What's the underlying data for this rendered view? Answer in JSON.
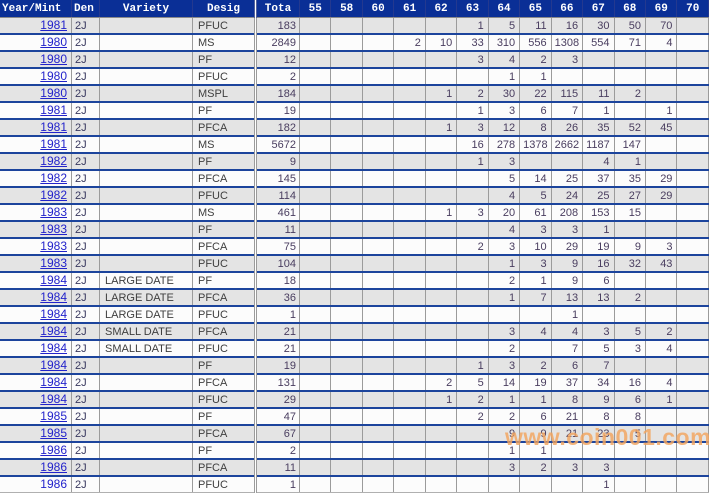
{
  "colors": {
    "header_bg": "#0a2f96",
    "header_text": "#ffffff",
    "row_separator_blue": "#1c449c",
    "row_odd_bg": "#e4e4e4",
    "row_even_bg": "#fcfcfc",
    "grid_line_gray": "#9b9b9b",
    "year_link_blue": "#2323cb",
    "number_text": "#493d5f",
    "watermark_orange": "#f3a55f"
  },
  "watermark": {
    "text": "www.coin001.com"
  },
  "table": {
    "columns": [
      "Year/Mint",
      "Den",
      "Variety",
      "Desig",
      "Tota",
      "55",
      "58",
      "60",
      "61",
      "62",
      "63",
      "64",
      "65",
      "66",
      "67",
      "68",
      "69",
      "70"
    ],
    "grade_columns": [
      "55",
      "58",
      "60",
      "61",
      "62",
      "63",
      "64",
      "65",
      "66",
      "67",
      "68",
      "69",
      "70"
    ],
    "rows": [
      {
        "year": "1981",
        "den": "2J",
        "variety": "",
        "desig": "PFUC",
        "total": "183",
        "year_linked": true,
        "grades": [
          "",
          "",
          "",
          "",
          "",
          "1",
          "5",
          "11",
          "16",
          "30",
          "50",
          "70",
          ""
        ]
      },
      {
        "year": "1980",
        "den": "2J",
        "variety": "",
        "desig": "MS",
        "total": "2849",
        "year_linked": true,
        "grades": [
          "",
          "",
          "",
          "2",
          "10",
          "33",
          "310",
          "556",
          "1308",
          "554",
          "71",
          "4",
          ""
        ]
      },
      {
        "year": "1980",
        "den": "2J",
        "variety": "",
        "desig": "PF",
        "total": "12",
        "year_linked": true,
        "grades": [
          "",
          "",
          "",
          "",
          "",
          "3",
          "4",
          "2",
          "3",
          "",
          "",
          "",
          ""
        ]
      },
      {
        "year": "1980",
        "den": "2J",
        "variety": "",
        "desig": "PFUC",
        "total": "2",
        "year_linked": true,
        "grades": [
          "",
          "",
          "",
          "",
          "",
          "",
          "1",
          "1",
          "",
          "",
          "",
          "",
          ""
        ]
      },
      {
        "year": "1980",
        "den": "2J",
        "variety": "",
        "desig": "MSPL",
        "total": "184",
        "year_linked": true,
        "grades": [
          "",
          "",
          "",
          "",
          "1",
          "2",
          "30",
          "22",
          "115",
          "11",
          "2",
          "",
          ""
        ]
      },
      {
        "year": "1981",
        "den": "2J",
        "variety": "",
        "desig": "PF",
        "total": "19",
        "year_linked": true,
        "grades": [
          "",
          "",
          "",
          "",
          "",
          "1",
          "3",
          "6",
          "7",
          "1",
          "",
          "1",
          ""
        ]
      },
      {
        "year": "1981",
        "den": "2J",
        "variety": "",
        "desig": "PFCA",
        "total": "182",
        "year_linked": true,
        "grades": [
          "",
          "",
          "",
          "",
          "1",
          "3",
          "12",
          "8",
          "26",
          "35",
          "52",
          "45",
          ""
        ]
      },
      {
        "year": "1981",
        "den": "2J",
        "variety": "",
        "desig": "MS",
        "total": "5672",
        "year_linked": true,
        "grades": [
          "",
          "",
          "",
          "",
          "",
          "16",
          "278",
          "1378",
          "2662",
          "1187",
          "147",
          "",
          ""
        ]
      },
      {
        "year": "1982",
        "den": "2J",
        "variety": "",
        "desig": "PF",
        "total": "9",
        "year_linked": true,
        "grades": [
          "",
          "",
          "",
          "",
          "",
          "1",
          "3",
          "",
          "",
          "4",
          "1",
          "",
          ""
        ]
      },
      {
        "year": "1982",
        "den": "2J",
        "variety": "",
        "desig": "PFCA",
        "total": "145",
        "year_linked": true,
        "grades": [
          "",
          "",
          "",
          "",
          "",
          "",
          "5",
          "14",
          "25",
          "37",
          "35",
          "29",
          ""
        ]
      },
      {
        "year": "1982",
        "den": "2J",
        "variety": "",
        "desig": "PFUC",
        "total": "114",
        "year_linked": true,
        "grades": [
          "",
          "",
          "",
          "",
          "",
          "",
          "4",
          "5",
          "24",
          "25",
          "27",
          "29",
          ""
        ]
      },
      {
        "year": "1983",
        "den": "2J",
        "variety": "",
        "desig": "MS",
        "total": "461",
        "year_linked": true,
        "grades": [
          "",
          "",
          "",
          "",
          "1",
          "3",
          "20",
          "61",
          "208",
          "153",
          "15",
          "",
          ""
        ]
      },
      {
        "year": "1983",
        "den": "2J",
        "variety": "",
        "desig": "PF",
        "total": "11",
        "year_linked": true,
        "grades": [
          "",
          "",
          "",
          "",
          "",
          "",
          "4",
          "3",
          "3",
          "1",
          "",
          "",
          ""
        ]
      },
      {
        "year": "1983",
        "den": "2J",
        "variety": "",
        "desig": "PFCA",
        "total": "75",
        "year_linked": true,
        "grades": [
          "",
          "",
          "",
          "",
          "",
          "2",
          "3",
          "10",
          "29",
          "19",
          "9",
          "3",
          ""
        ]
      },
      {
        "year": "1983",
        "den": "2J",
        "variety": "",
        "desig": "PFUC",
        "total": "104",
        "year_linked": true,
        "grades": [
          "",
          "",
          "",
          "",
          "",
          "",
          "1",
          "3",
          "9",
          "16",
          "32",
          "43",
          ""
        ]
      },
      {
        "year": "1984",
        "den": "2J",
        "variety": "LARGE DATE",
        "desig": "PF",
        "total": "18",
        "year_linked": true,
        "grades": [
          "",
          "",
          "",
          "",
          "",
          "",
          "2",
          "1",
          "9",
          "6",
          "",
          "",
          ""
        ]
      },
      {
        "year": "1984",
        "den": "2J",
        "variety": "LARGE DATE",
        "desig": "PFCA",
        "total": "36",
        "year_linked": true,
        "grades": [
          "",
          "",
          "",
          "",
          "",
          "",
          "1",
          "7",
          "13",
          "13",
          "2",
          "",
          ""
        ]
      },
      {
        "year": "1984",
        "den": "2J",
        "variety": "LARGE DATE",
        "desig": "PFUC",
        "total": "1",
        "year_linked": true,
        "grades": [
          "",
          "",
          "",
          "",
          "",
          "",
          "",
          "",
          "1",
          "",
          "",
          "",
          ""
        ]
      },
      {
        "year": "1984",
        "den": "2J",
        "variety": "SMALL DATE",
        "desig": "PFCA",
        "total": "21",
        "year_linked": true,
        "grades": [
          "",
          "",
          "",
          "",
          "",
          "",
          "3",
          "4",
          "4",
          "3",
          "5",
          "2",
          ""
        ]
      },
      {
        "year": "1984",
        "den": "2J",
        "variety": "SMALL DATE",
        "desig": "PFUC",
        "total": "21",
        "year_linked": true,
        "grades": [
          "",
          "",
          "",
          "",
          "",
          "",
          "2",
          "",
          "7",
          "5",
          "3",
          "4",
          ""
        ]
      },
      {
        "year": "1984",
        "den": "2J",
        "variety": "",
        "desig": "PF",
        "total": "19",
        "year_linked": true,
        "grades": [
          "",
          "",
          "",
          "",
          "",
          "1",
          "3",
          "2",
          "6",
          "7",
          "",
          "",
          ""
        ]
      },
      {
        "year": "1984",
        "den": "2J",
        "variety": "",
        "desig": "PFCA",
        "total": "131",
        "year_linked": true,
        "grades": [
          "",
          "",
          "",
          "",
          "2",
          "5",
          "14",
          "19",
          "37",
          "34",
          "16",
          "4",
          ""
        ]
      },
      {
        "year": "1984",
        "den": "2J",
        "variety": "",
        "desig": "PFUC",
        "total": "29",
        "year_linked": true,
        "grades": [
          "",
          "",
          "",
          "",
          "1",
          "2",
          "1",
          "1",
          "8",
          "9",
          "6",
          "1",
          ""
        ]
      },
      {
        "year": "1985",
        "den": "2J",
        "variety": "",
        "desig": "PF",
        "total": "47",
        "year_linked": true,
        "grades": [
          "",
          "",
          "",
          "",
          "",
          "2",
          "2",
          "6",
          "21",
          "8",
          "8",
          "",
          ""
        ]
      },
      {
        "year": "1985",
        "den": "2J",
        "variety": "",
        "desig": "PFCA",
        "total": "67",
        "year_linked": true,
        "grades": [
          "",
          "",
          "",
          "",
          "",
          "",
          "9",
          "9",
          "21",
          "23",
          "5",
          "",
          ""
        ]
      },
      {
        "year": "1986",
        "den": "2J",
        "variety": "",
        "desig": "PF",
        "total": "2",
        "year_linked": true,
        "grades": [
          "",
          "",
          "",
          "",
          "",
          "",
          "1",
          "1",
          "",
          "",
          "",
          "",
          ""
        ]
      },
      {
        "year": "1986",
        "den": "2J",
        "variety": "",
        "desig": "PFCA",
        "total": "11",
        "year_linked": true,
        "grades": [
          "",
          "",
          "",
          "",
          "",
          "",
          "3",
          "2",
          "3",
          "3",
          "",
          "",
          ""
        ]
      },
      {
        "year": "1986",
        "den": "2J",
        "variety": "",
        "desig": "PFUC",
        "total": "1",
        "year_linked": false,
        "grades": [
          "",
          "",
          "",
          "",
          "",
          "",
          "",
          "",
          "",
          "1",
          "",
          "",
          ""
        ]
      }
    ]
  }
}
